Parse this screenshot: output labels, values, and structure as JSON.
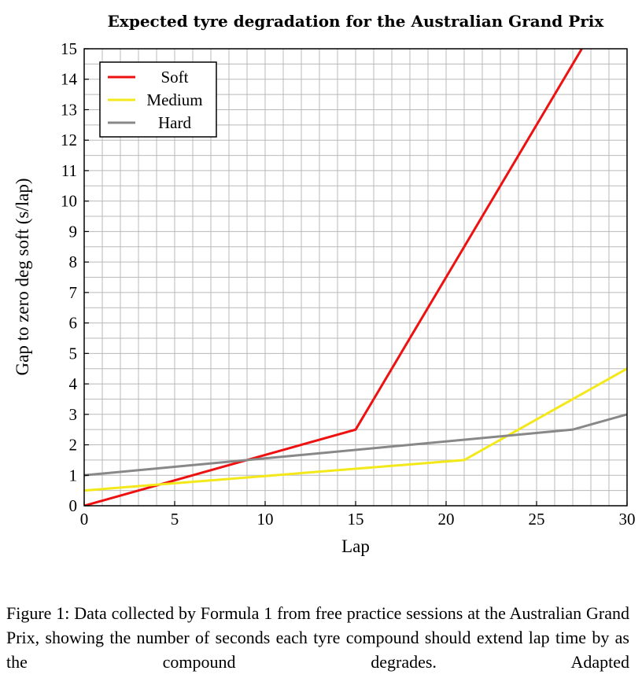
{
  "chart_data": {
    "type": "line",
    "title": "Expected tyre degradation for the Australian Grand Prix",
    "xlabel": "Lap",
    "ylabel": "Gap to zero deg soft (s/lap)",
    "xlim": [
      0,
      30
    ],
    "ylim": [
      0,
      15
    ],
    "x_ticks": [
      0,
      5,
      10,
      15,
      20,
      25,
      30
    ],
    "y_ticks": [
      0,
      1,
      2,
      3,
      4,
      5,
      6,
      7,
      8,
      9,
      10,
      11,
      12,
      13,
      14,
      15
    ],
    "grid": true,
    "legend_position": "top-left",
    "series": [
      {
        "name": "Soft",
        "color": "#ee1111",
        "points": [
          [
            0,
            0
          ],
          [
            15,
            2.5
          ],
          [
            27.5,
            15
          ]
        ]
      },
      {
        "name": "Medium",
        "color": "#f3e81a",
        "points": [
          [
            0,
            0.5
          ],
          [
            21,
            1.5
          ],
          [
            30,
            4.5
          ]
        ]
      },
      {
        "name": "Hard",
        "color": "#888888",
        "points": [
          [
            0,
            1
          ],
          [
            27,
            2.5
          ],
          [
            30,
            3
          ]
        ]
      }
    ]
  },
  "caption": "Figure 1: Data collected by Formula 1 from free practice sessions at the Australian Grand Prix, showing the number of seconds each tyre compound should extend lap time by as the compound degrades. Adapted"
}
